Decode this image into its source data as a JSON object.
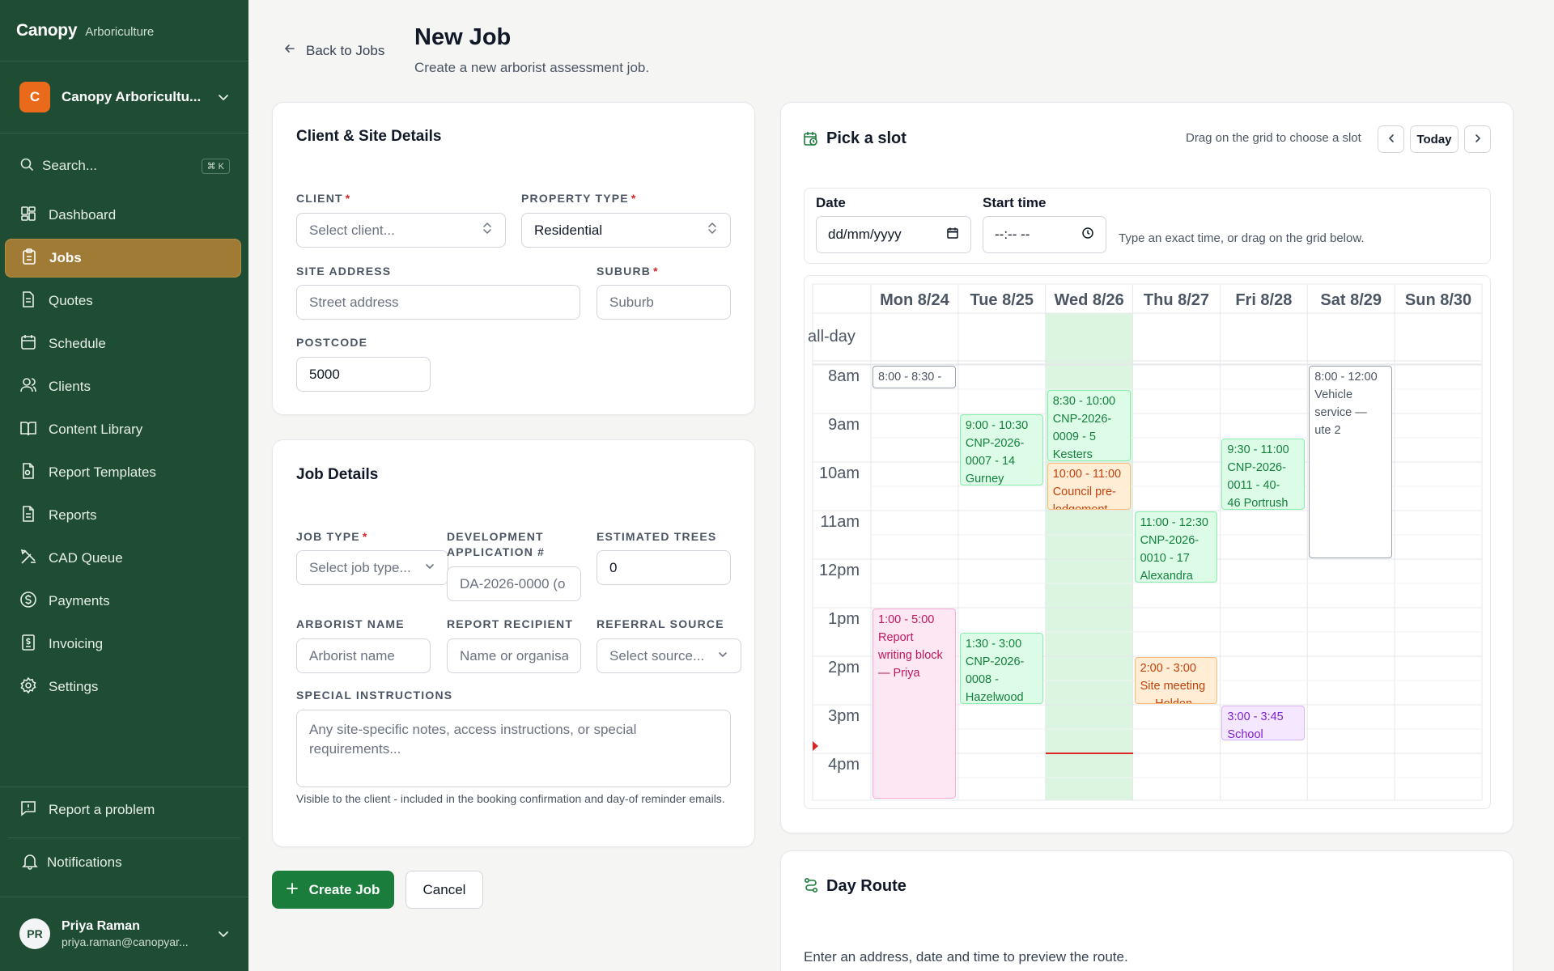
{
  "sidebar": {
    "brand": "Canopy",
    "brand_sub": "Arboriculture",
    "org_initial": "C",
    "org_name": "Canopy Arboricultu...",
    "search_label": "Search...",
    "search_kbd": "⌘ K",
    "nav": [
      {
        "label": "Dashboard",
        "icon": "dashboard-icon"
      },
      {
        "label": "Jobs",
        "icon": "clipboard-icon",
        "active": true
      },
      {
        "label": "Quotes",
        "icon": "document-icon"
      },
      {
        "label": "Schedule",
        "icon": "calendar-icon"
      },
      {
        "label": "Clients",
        "icon": "users-icon"
      },
      {
        "label": "Content Library",
        "icon": "book-icon"
      },
      {
        "label": "Report Templates",
        "icon": "file-template-icon"
      },
      {
        "label": "Reports",
        "icon": "report-icon"
      },
      {
        "label": "CAD Queue",
        "icon": "cad-icon"
      },
      {
        "label": "Payments",
        "icon": "dollar-icon"
      },
      {
        "label": "Invoicing",
        "icon": "invoice-icon"
      },
      {
        "label": "Settings",
        "icon": "gear-icon"
      }
    ],
    "report_problem": "Report a problem",
    "notifications": "Notifications",
    "user_initials": "PR",
    "user_name": "Priya Raman",
    "user_email": "priya.raman@canopyar..."
  },
  "header": {
    "back_label": "Back to Jobs",
    "title": "New Job",
    "subtitle": "Create a new arborist assessment job."
  },
  "client_card": {
    "title": "Client & Site Details",
    "client_label": "CLIENT",
    "client_placeholder": "Select client...",
    "property_type_label": "PROPERTY TYPE",
    "property_type_value": "Residential",
    "site_address_label": "SITE ADDRESS",
    "site_address_placeholder": "Street address",
    "suburb_label": "SUBURB",
    "suburb_placeholder": "Suburb",
    "postcode_label": "POSTCODE",
    "postcode_value": "5000"
  },
  "job_card": {
    "title": "Job Details",
    "job_type_label": "JOB TYPE",
    "job_type_placeholder": "Select job type...",
    "da_label_1": "DEVELOPMENT",
    "da_label_2": "APPLICATION #",
    "da_placeholder": "DA-2026-0000 (o",
    "trees_label": "ESTIMATED TREES",
    "trees_value": "0",
    "arborist_label": "ARBORIST NAME",
    "arborist_placeholder": "Arborist name",
    "recipient_label": "REPORT RECIPIENT",
    "recipient_placeholder": "Name or organisa",
    "referral_label": "REFERRAL SOURCE",
    "referral_placeholder": "Select source...",
    "instructions_label": "SPECIAL INSTRUCTIONS",
    "instructions_placeholder": "Any site-specific notes, access instructions, or special requirements...",
    "instructions_hint": "Visible to the client - included in the booking confirmation and day-of reminder emails."
  },
  "actions": {
    "create": "Create Job",
    "cancel": "Cancel"
  },
  "slot_picker": {
    "title": "Pick a slot",
    "hint": "Drag on the grid to choose a slot",
    "today": "Today",
    "date_label": "Date",
    "date_placeholder": "dd/mm/yyyy",
    "time_label": "Start time",
    "time_placeholder": "--:-- --",
    "time_hint": "Type an exact time, or drag on the grid below.",
    "all_day": "all-day",
    "days": [
      "Mon 8/24",
      "Tue 8/25",
      "Wed 8/26",
      "Thu 8/27",
      "Fri 8/28",
      "Sat 8/29",
      "Sun 8/30"
    ],
    "hours": [
      "8am",
      "9am",
      "10am",
      "11am",
      "12pm",
      "1pm",
      "2pm",
      "3pm",
      "4pm"
    ],
    "today_index": 2,
    "now_hour": 16,
    "events": [
      {
        "day": 0,
        "start": 8,
        "end": 8.5,
        "color": "gray",
        "lines": [
          "8:00 - 8:30 -"
        ]
      },
      {
        "day": 1,
        "start": 9,
        "end": 10.5,
        "color": "green",
        "lines": [
          "9:00 - 10:30",
          "CNP-2026-",
          "0007 - 14",
          "Gurney"
        ]
      },
      {
        "day": 2,
        "start": 8.5,
        "end": 10,
        "color": "green",
        "lines": [
          "8:30 - 10:00",
          "CNP-2026-",
          "0009 - 5",
          "Kesters"
        ]
      },
      {
        "day": 2,
        "start": 10,
        "end": 11,
        "color": "orange",
        "lines": [
          "10:00 - 11:00",
          "Council pre-",
          "lodgement"
        ]
      },
      {
        "day": 3,
        "start": 11,
        "end": 12.5,
        "color": "green",
        "lines": [
          "11:00 - 12:30",
          "CNP-2026-",
          "0010 - 17",
          "Alexandra"
        ]
      },
      {
        "day": 4,
        "start": 9.5,
        "end": 11,
        "color": "green",
        "lines": [
          "9:30 - 11:00",
          "CNP-2026-",
          "0011 - 40-",
          "46 Portrush"
        ]
      },
      {
        "day": 5,
        "start": 8,
        "end": 12,
        "color": "gray",
        "lines": [
          "8:00 - 12:00",
          "Vehicle",
          "service —",
          "ute 2"
        ]
      },
      {
        "day": 0,
        "start": 13,
        "end": 17,
        "color": "pink",
        "lines": [
          "1:00 - 5:00",
          "Report",
          "writing block",
          "— Priya"
        ]
      },
      {
        "day": 1,
        "start": 13.5,
        "end": 15,
        "color": "green",
        "lines": [
          "1:30 - 3:00",
          "CNP-2026-",
          "0008 -",
          "Hazelwood"
        ]
      },
      {
        "day": 3,
        "start": 14,
        "end": 15,
        "color": "orange",
        "lines": [
          "2:00 - 3:00",
          "Site meeting",
          "— Holden"
        ]
      },
      {
        "day": 4,
        "start": 15,
        "end": 15.75,
        "color": "purple",
        "lines": [
          "3:00 - 3:45",
          "School"
        ]
      }
    ]
  },
  "day_route": {
    "title": "Day Route",
    "text": "Enter an address, date and time to preview the route."
  }
}
